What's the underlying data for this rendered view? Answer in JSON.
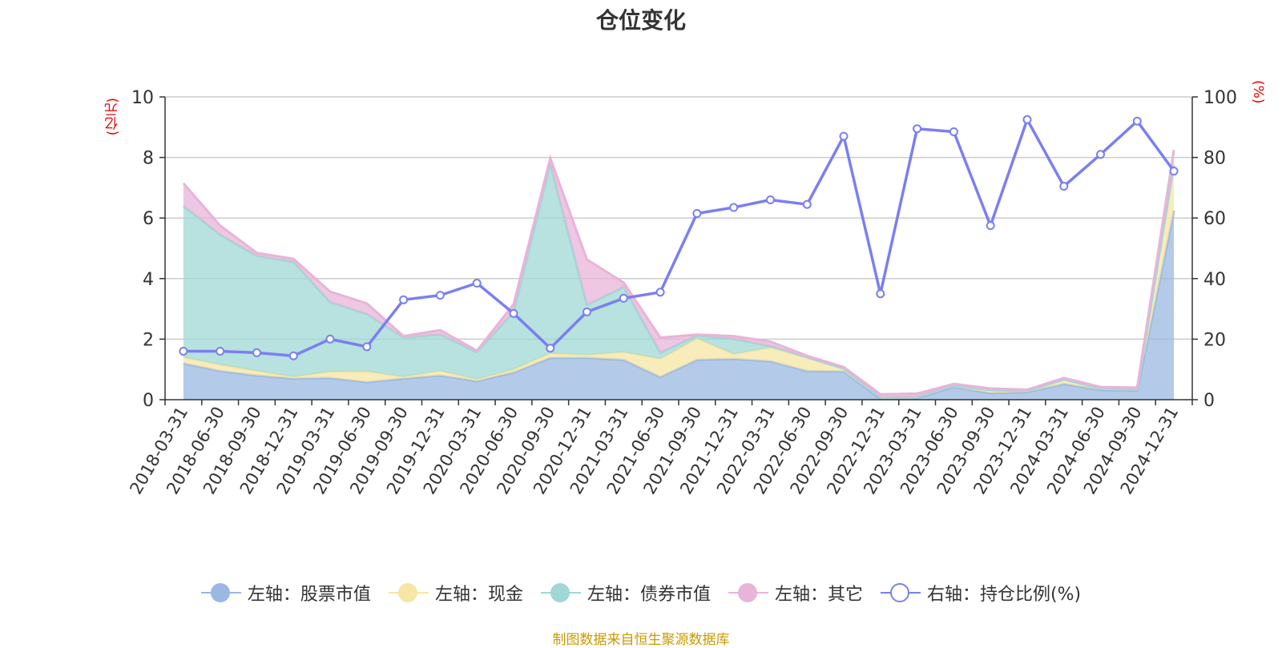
{
  "title": "仓位变化",
  "source_note": "制图数据来自恒生聚源数据库",
  "chart_data": {
    "type": "area",
    "title": "仓位变化",
    "left_axis": {
      "unit": "(亿元)",
      "range": [
        0,
        10
      ],
      "ticks": [
        "0",
        "2",
        "4",
        "6",
        "8",
        "10"
      ]
    },
    "right_axis": {
      "unit": "(%)",
      "range": [
        0,
        100
      ],
      "ticks": [
        "0",
        "20",
        "40",
        "60",
        "80",
        "100"
      ]
    },
    "categories": [
      "2018-03-31",
      "2018-06-30",
      "2018-09-30",
      "2018-12-31",
      "2019-03-31",
      "2019-06-30",
      "2019-09-30",
      "2019-12-31",
      "2020-03-31",
      "2020-06-30",
      "2020-09-30",
      "2020-12-31",
      "2021-03-31",
      "2021-06-30",
      "2021-09-30",
      "2021-12-31",
      "2022-03-31",
      "2022-06-30",
      "2022-09-30",
      "2022-12-31",
      "2023-03-31",
      "2023-06-30",
      "2023-09-30",
      "2023-12-31",
      "2024-03-31",
      "2024-06-30",
      "2024-09-30",
      "2024-12-31"
    ],
    "series": [
      {
        "name": "左轴：股票市值",
        "axis": "left",
        "color": "#9ab8e2",
        "values": [
          1.2,
          0.95,
          0.8,
          0.7,
          0.72,
          0.58,
          0.7,
          0.8,
          0.62,
          0.9,
          1.38,
          1.38,
          1.32,
          0.75,
          1.32,
          1.35,
          1.27,
          0.95,
          0.93,
          0.03,
          0.05,
          0.42,
          0.22,
          0.25,
          0.52,
          0.32,
          0.3,
          6.25
        ]
      },
      {
        "name": "左轴：现金",
        "axis": "left",
        "color": "#f7e6a4",
        "values": [
          0.2,
          0.2,
          0.15,
          0.05,
          0.2,
          0.35,
          0.05,
          0.15,
          0.05,
          0.1,
          0.15,
          0.1,
          0.25,
          0.6,
          0.7,
          0.15,
          0.45,
          0.45,
          0.1,
          0.05,
          0.05,
          0.05,
          0.1,
          0.03,
          0.15,
          0.05,
          0.05,
          1.5
        ]
      },
      {
        "name": "左轴：债券市值",
        "axis": "left",
        "color": "#9fd8d6",
        "values": [
          5.0,
          4.3,
          3.8,
          3.8,
          2.3,
          1.9,
          1.3,
          1.2,
          0.9,
          1.9,
          6.25,
          1.65,
          2.15,
          0.2,
          0.1,
          0.5,
          0.05,
          0,
          0,
          0,
          0,
          0,
          0,
          0,
          0,
          0,
          0,
          0
        ]
      },
      {
        "name": "左轴：其它",
        "axis": "left",
        "color": "#e8b4d8",
        "values": [
          0.75,
          0.3,
          0.1,
          0.1,
          0.35,
          0.35,
          0.05,
          0.15,
          0.05,
          0.25,
          0.2,
          1.5,
          0.15,
          0.5,
          0.03,
          0.1,
          0.15,
          0.05,
          0.05,
          0.1,
          0.1,
          0.05,
          0.05,
          0.05,
          0.05,
          0.05,
          0.05,
          0.5
        ]
      },
      {
        "name": "右轴：持仓比例(%)",
        "axis": "right",
        "color": "#7b7ff0",
        "values": [
          16.0,
          16.0,
          15.5,
          14.5,
          20.0,
          17.5,
          33.0,
          34.5,
          38.5,
          28.5,
          17.0,
          29.0,
          33.5,
          35.5,
          61.5,
          63.5,
          66.0,
          64.5,
          87.0,
          35.0,
          89.5,
          88.5,
          57.5,
          92.5,
          70.5,
          81.0,
          92.0,
          75.5
        ]
      }
    ]
  }
}
